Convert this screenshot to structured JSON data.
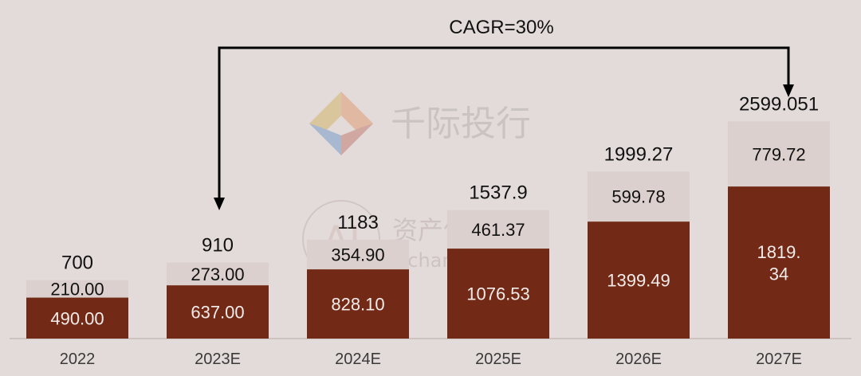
{
  "chart_data": {
    "type": "bar",
    "stacked": true,
    "categories": [
      "2022",
      "2023E",
      "2024E",
      "2025E",
      "2026E",
      "2027E"
    ],
    "series": [
      {
        "values": [
          490.0,
          637.0,
          828.1,
          1076.53,
          1399.49,
          1819.34
        ],
        "color": "#722a16",
        "labels": [
          "490.00",
          "637.00",
          "828.10",
          "1076.53",
          "1399.49",
          "1819.\n34"
        ]
      },
      {
        "values": [
          210.0,
          273.0,
          354.9,
          461.37,
          599.78,
          779.72
        ],
        "color": "#dcd0ce",
        "labels": [
          "210.00",
          "273.00",
          "354.90",
          "461.37",
          "599.78",
          "779.72"
        ]
      }
    ],
    "totals": [
      "700",
      "910",
      "1183",
      "1537.9",
      "1999.27",
      "2599.051"
    ],
    "annotation": "CAGR=30%",
    "grid": false,
    "legend": "none"
  },
  "watermarks": {
    "logo_text": "千际投行",
    "site_text": "资产信息网",
    "site_url": "zichanxinxi.com"
  },
  "colors": {
    "background": "#e3dbd9",
    "bar_primary": "#722a16",
    "bar_secondary": "#dcd0ce",
    "text_dark": "#111111",
    "text_light": "#ffffff",
    "axis_label": "#3a3a3a"
  }
}
